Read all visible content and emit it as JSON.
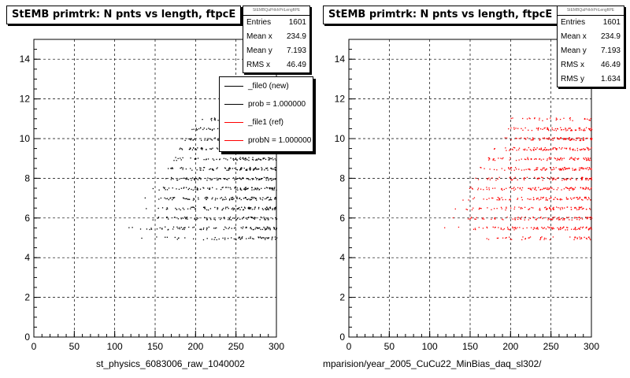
{
  "chart_data": [
    {
      "type": "scatter",
      "title": "StEMB primtrk: N pnts vs length, ftpcE",
      "xlabel": "st_physics_6083006_raw_1040002",
      "ylabel": "",
      "xlim": [
        0,
        300
      ],
      "ylim": [
        0,
        15
      ],
      "x_ticks": [
        "0",
        "50",
        "100",
        "150",
        "200",
        "250",
        "300"
      ],
      "y_ticks": [
        "0",
        "2",
        "4",
        "6",
        "8",
        "10",
        "12",
        "14"
      ],
      "grid": true,
      "marker_color": "#000000",
      "point_region": {
        "x_min": 105,
        "x_max": 300,
        "y_min": 5,
        "y_max": 11
      },
      "stats": {
        "header": "StEMBQaPrikhPriLengftPE",
        "rows": [
          {
            "label": "Entries",
            "value": "1601"
          },
          {
            "label": "Mean x",
            "value": "234.9"
          },
          {
            "label": "Mean y",
            "value": "7.193"
          },
          {
            "label": "RMS x",
            "value": "46.49"
          }
        ]
      },
      "legend": {
        "placement": "top-right",
        "entries": [
          {
            "label": "_file0 (new)",
            "color": "#000000"
          },
          {
            "label": "prob = 1.000000",
            "color": "#000000"
          },
          {
            "label": "_file1 (ref)",
            "color": "#ff0000"
          },
          {
            "label": "probN = 1.000000",
            "color": "#ff0000"
          }
        ]
      }
    },
    {
      "type": "scatter",
      "title": "StEMB primtrk: N pnts vs length, ftpcE",
      "xlabel": "mparision/year_2005_CuCu22_MinBias_daq_sl302/",
      "ylabel": "",
      "xlim": [
        0,
        300
      ],
      "ylim": [
        0,
        15
      ],
      "x_ticks": [
        "0",
        "50",
        "100",
        "150",
        "200",
        "250",
        "300"
      ],
      "y_ticks": [
        "0",
        "2",
        "4",
        "6",
        "8",
        "10",
        "12",
        "14"
      ],
      "grid": true,
      "marker_color": "#ff0000",
      "point_region": {
        "x_min": 105,
        "x_max": 300,
        "y_min": 5,
        "y_max": 11
      },
      "stats": {
        "header": "StEMBQaPrikhPriLengftPE",
        "rows": [
          {
            "label": "Entries",
            "value": "1601"
          },
          {
            "label": "Mean x",
            "value": "234.9"
          },
          {
            "label": "Mean y",
            "value": "7.193"
          },
          {
            "label": "RMS x",
            "value": "46.49"
          },
          {
            "label": "RMS y",
            "value": "1.634"
          }
        ]
      }
    }
  ]
}
